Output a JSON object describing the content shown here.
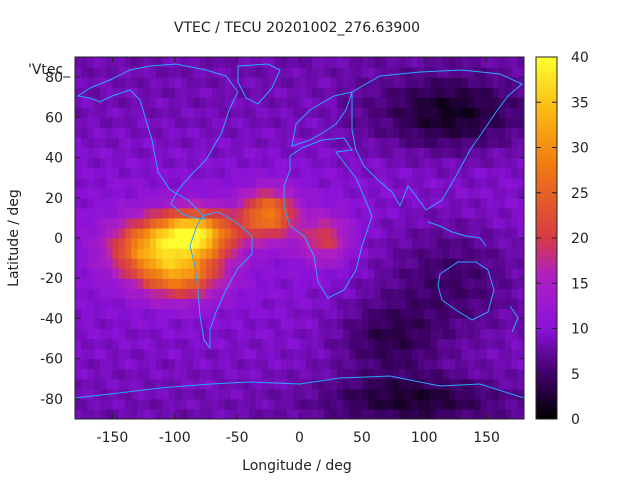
{
  "chart_data": {
    "type": "heatmap",
    "title": "VTEC / TECU 20201002_276.63900",
    "xlabel": "Longitude / deg",
    "ylabel": "Latitude / deg",
    "xlim": [
      -180,
      180
    ],
    "ylim": [
      -90,
      90
    ],
    "xticks": [
      -150,
      -100,
      -50,
      0,
      50,
      100,
      150
    ],
    "yticks": [
      80,
      60,
      40,
      20,
      0,
      -20,
      -40,
      -60,
      -80
    ],
    "colorbar": {
      "min": 0,
      "max": 40,
      "ticks": [
        40,
        35,
        30,
        25,
        20,
        15,
        10,
        5,
        0
      ]
    },
    "series_label": "'Vtec_",
    "background_vtec": 8,
    "features": [
      {
        "name": "equatorial-anomaly-core",
        "lon": -85,
        "lat": 2,
        "value": 36,
        "rx": 32,
        "ry": 12
      },
      {
        "name": "anomaly-west-lobe",
        "lon": -125,
        "lat": -5,
        "value": 24,
        "rx": 30,
        "ry": 14
      },
      {
        "name": "anomaly-south-lobe",
        "lon": -95,
        "lat": -18,
        "value": 26,
        "rx": 32,
        "ry": 12
      },
      {
        "name": "anomaly-atlantic-lobe",
        "lon": -25,
        "lat": 12,
        "value": 26,
        "rx": 22,
        "ry": 12
      },
      {
        "name": "anomaly-east-trail",
        "lon": 20,
        "lat": 0,
        "value": 18,
        "rx": 20,
        "ry": 12
      },
      {
        "name": "siberia-low",
        "lon": 120,
        "lat": 62,
        "value": 2,
        "rx": 50,
        "ry": 18
      },
      {
        "name": "pacific-low",
        "lon": 120,
        "lat": -20,
        "value": 3,
        "rx": 60,
        "ry": 30
      },
      {
        "name": "south-indian-low",
        "lon": 70,
        "lat": -50,
        "value": 3,
        "rx": 40,
        "ry": 18
      },
      {
        "name": "antarctic-low",
        "lon": 90,
        "lat": -80,
        "value": 2,
        "rx": 70,
        "ry": 12
      }
    ]
  },
  "colors": {
    "coastline": "#2aa7ff",
    "axis": "#222222",
    "palette": [
      "#000000",
      "#3d0066",
      "#8a12d8",
      "#b020c0",
      "#d63a45",
      "#f07a12",
      "#fcb814",
      "#ffff30"
    ]
  }
}
